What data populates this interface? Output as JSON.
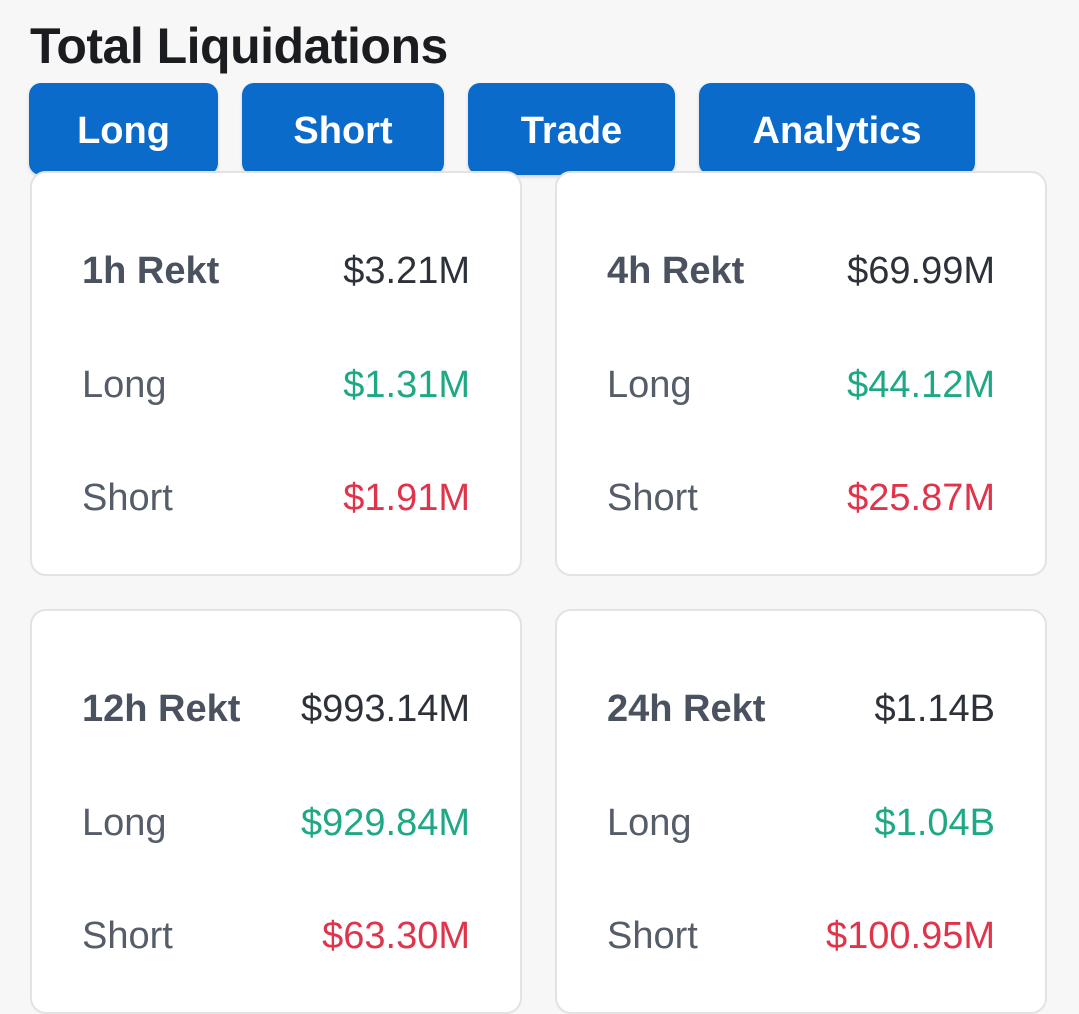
{
  "header": {
    "title": "Total Liquidations"
  },
  "tabs": [
    {
      "label": "Long"
    },
    {
      "label": "Short"
    },
    {
      "label": "Trade"
    },
    {
      "label": "Analytics"
    }
  ],
  "colors": {
    "tab_background": "#0b6bcb",
    "long_value": "#1ea885",
    "short_value": "#e0344b"
  },
  "cards": [
    {
      "title": "1h Rekt",
      "total": "$3.21M",
      "long_label": "Long",
      "long": "$1.31M",
      "short_label": "Short",
      "short": "$1.91M"
    },
    {
      "title": "4h Rekt",
      "total": "$69.99M",
      "long_label": "Long",
      "long": "$44.12M",
      "short_label": "Short",
      "short": "$25.87M"
    },
    {
      "title": "12h Rekt",
      "total": "$993.14M",
      "long_label": "Long",
      "long": "$929.84M",
      "short_label": "Short",
      "short": "$63.30M"
    },
    {
      "title": "24h Rekt",
      "total": "$1.14B",
      "long_label": "Long",
      "long": "$1.04B",
      "short_label": "Short",
      "short": "$100.95M"
    }
  ]
}
